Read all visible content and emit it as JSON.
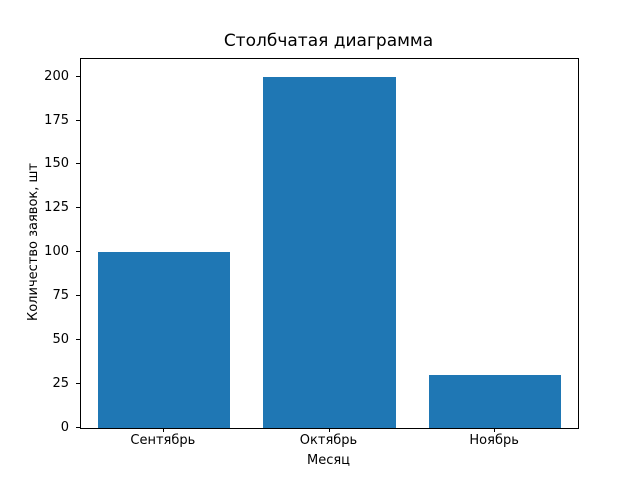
{
  "figure": {
    "background": "#ffffff",
    "text_color": "#000000",
    "spine_color": "#000000"
  },
  "chart_data": {
    "type": "bar",
    "title": "Столбчатая диаграмма",
    "xlabel": "Месяц",
    "ylabel": "Количество заявок, шт",
    "categories": [
      "Сентябрь",
      "Октябрь",
      "Ноябрь"
    ],
    "values": [
      100,
      200,
      30
    ],
    "yticks": [
      0,
      25,
      50,
      75,
      100,
      125,
      150,
      175,
      200
    ],
    "ylim": [
      0,
      210
    ],
    "bar_color": "#1f77b4",
    "grid": false,
    "legend_position": "none"
  }
}
